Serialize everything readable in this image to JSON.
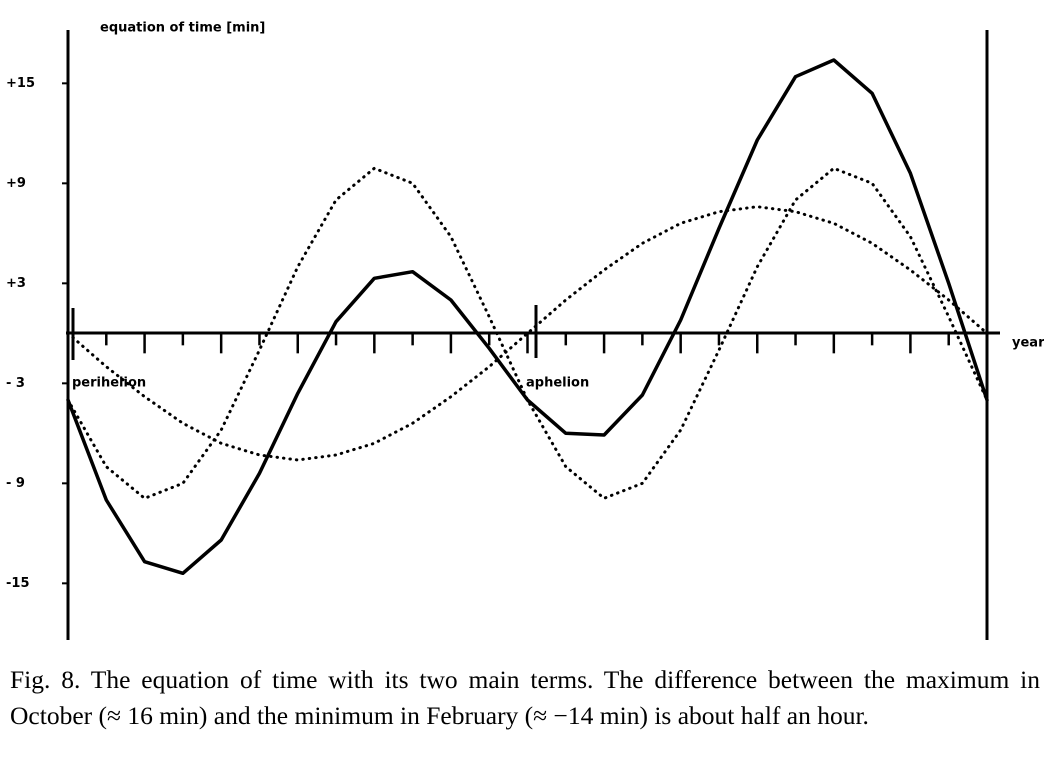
{
  "chart_data": {
    "type": "line",
    "title": "equation of time [min]",
    "x_label": "year",
    "annotations": [
      "perihelion",
      "aphelion"
    ],
    "x": [
      0,
      0.5,
      1,
      1.5,
      2,
      2.5,
      3,
      3.5,
      4,
      4.5,
      5,
      5.5,
      6,
      6.5,
      7,
      7.5,
      8,
      8.5,
      9,
      9.5,
      10,
      10.5,
      11,
      11.5,
      12
    ],
    "xlim": [
      0,
      12
    ],
    "xticks": [
      0,
      0.5,
      1,
      1.5,
      2,
      2.5,
      3,
      3.5,
      4,
      4.5,
      5,
      5.5,
      6,
      6.5,
      7,
      7.5,
      8,
      8.5,
      9,
      9.5,
      10,
      10.5,
      11,
      11.5,
      12
    ],
    "ylim": [
      -18.4,
      18.2
    ],
    "yticks": [
      {
        "value": 15,
        "label": "+15"
      },
      {
        "value": 9,
        "label": "+9"
      },
      {
        "value": 3,
        "label": "+3"
      },
      {
        "value": -3,
        "label": "- 3"
      },
      {
        "value": -9,
        "label": "- 9"
      },
      {
        "value": -15,
        "label": "-15"
      }
    ],
    "series": [
      {
        "style": "solid",
        "color": "#000000",
        "values": [
          -4.0,
          -10.0,
          -13.7,
          -14.4,
          -12.4,
          -8.4,
          -3.6,
          0.7,
          3.3,
          3.7,
          2.0,
          -0.9,
          -4.0,
          -6.0,
          -6.1,
          -3.7,
          0.8,
          6.3,
          11.6,
          15.4,
          16.4,
          14.4,
          9.6,
          3.0,
          -4.0
        ]
      },
      {
        "style": "dotted",
        "color": "#000000",
        "values": [
          0,
          -2.0,
          -3.8,
          -5.4,
          -6.6,
          -7.3,
          -7.6,
          -7.3,
          -6.6,
          -5.4,
          -3.8,
          -2.0,
          0,
          2.0,
          3.8,
          5.4,
          6.6,
          7.3,
          7.6,
          7.3,
          6.6,
          5.4,
          3.8,
          2.0,
          0
        ]
      },
      {
        "style": "dotted",
        "color": "#000000",
        "values": [
          -4.0,
          -8.0,
          -9.9,
          -9.0,
          -5.8,
          -1.0,
          4.0,
          8.0,
          9.9,
          9.0,
          5.8,
          1.0,
          -4.0,
          -8.0,
          -9.9,
          -9.0,
          -5.8,
          -1.0,
          4.0,
          8.0,
          9.9,
          9.0,
          5.8,
          1.0,
          -4.0
        ]
      }
    ]
  },
  "caption": "Fig. 8. The equation of time with its two main terms.  The difference between the maximum in October (≈ 16 min) and the minimum in February (≈ −14 min) is about half an hour."
}
